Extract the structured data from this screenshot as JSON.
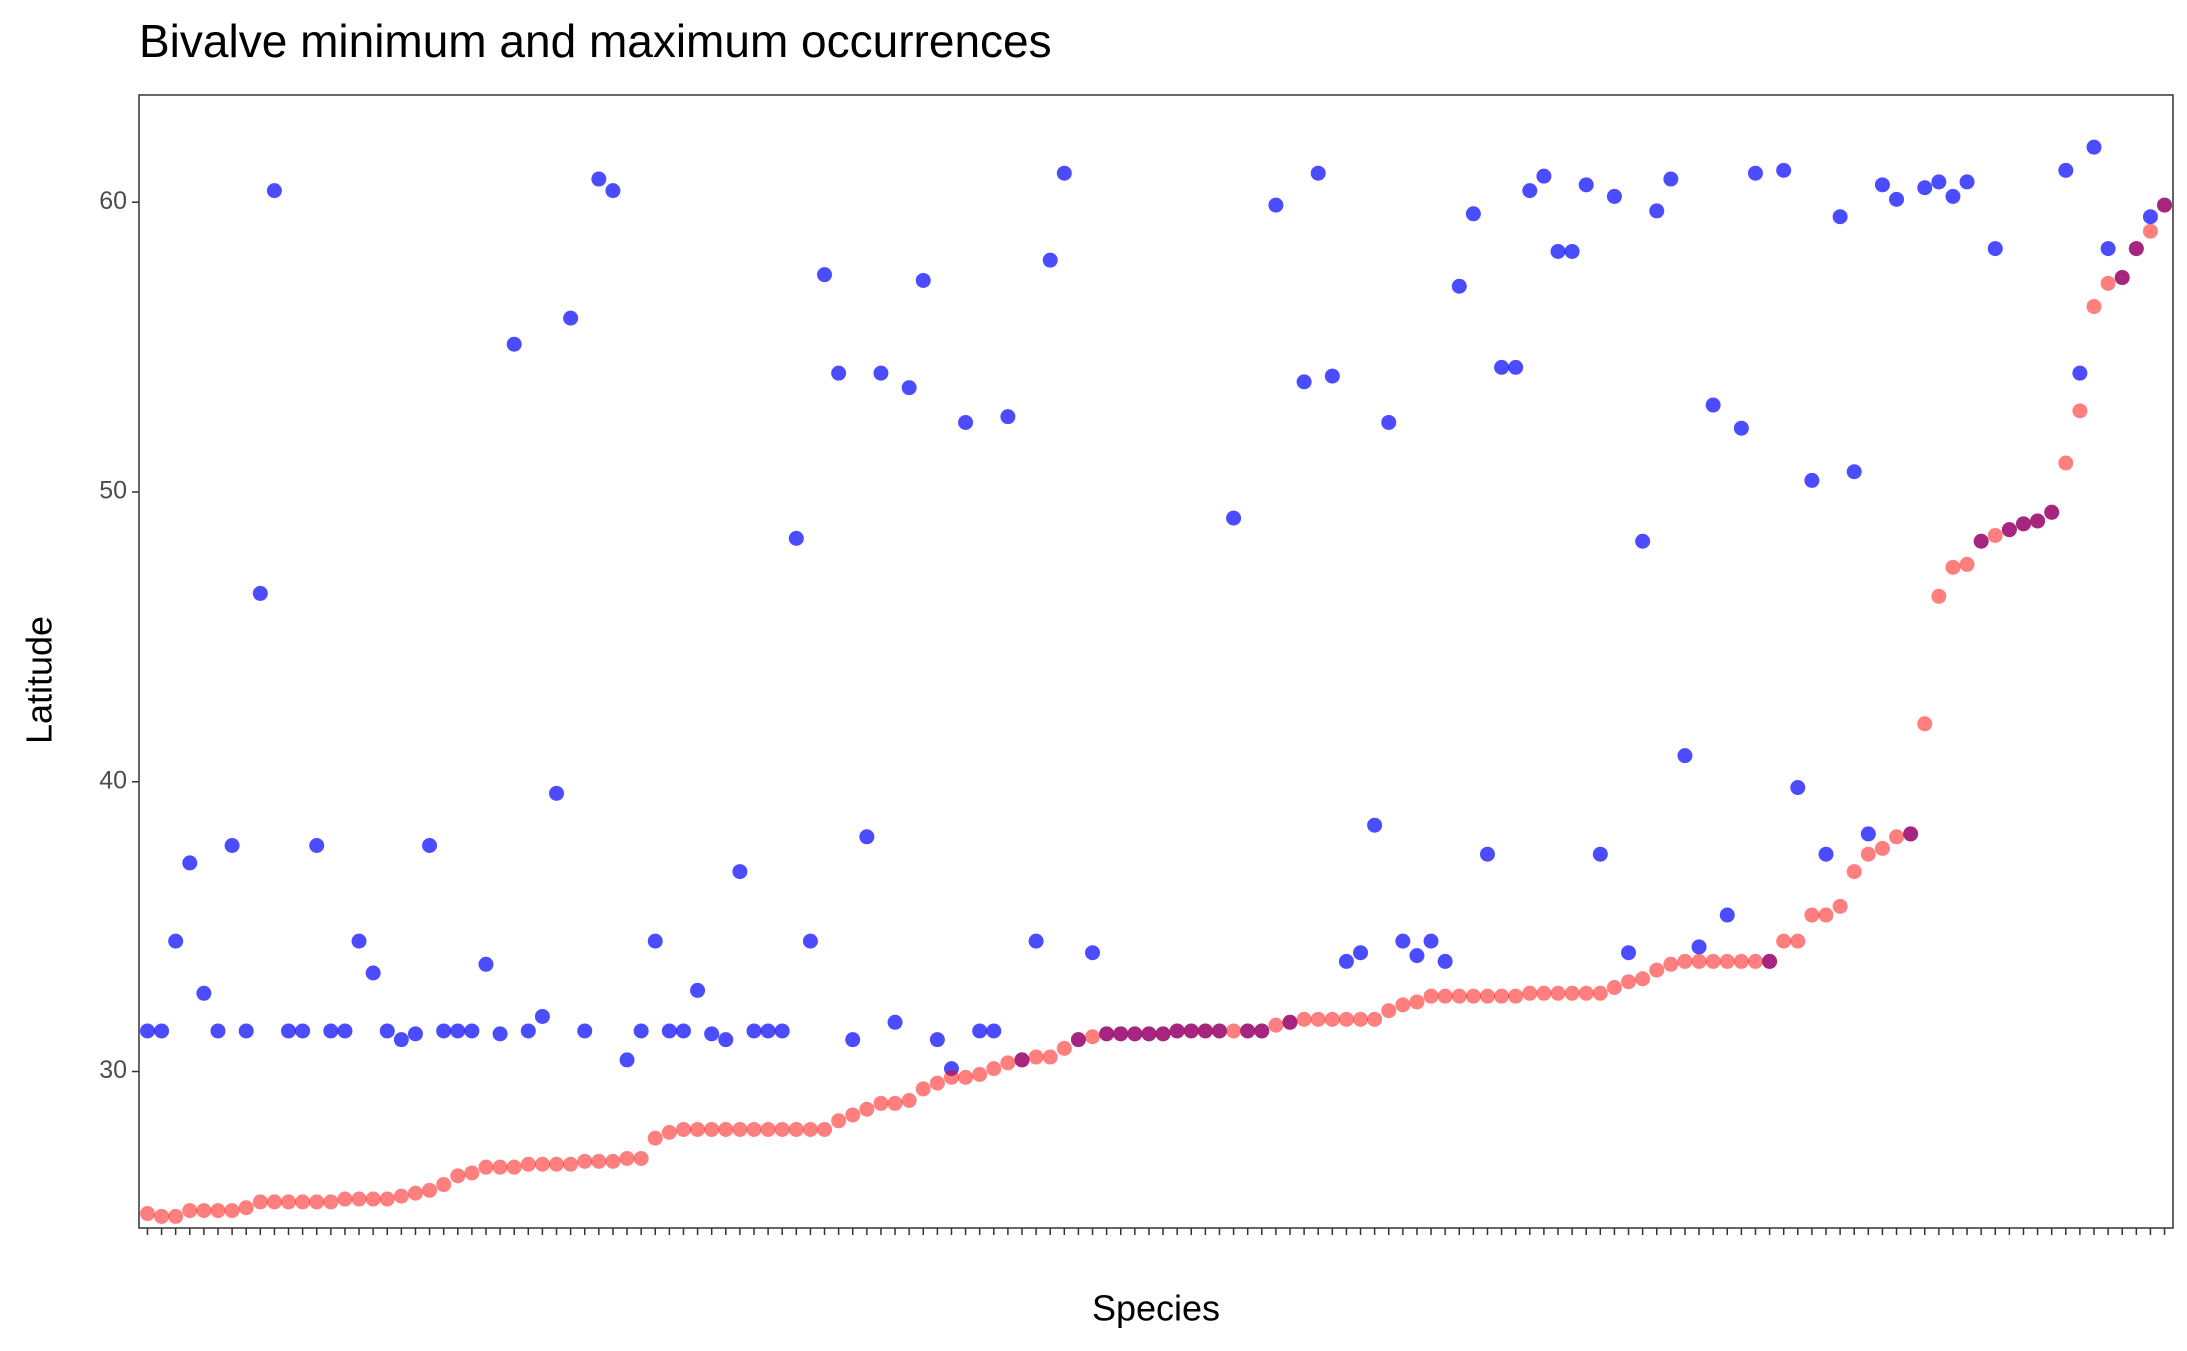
{
  "chart_data": {
    "type": "scatter",
    "title": "Bivalve minimum and maximum occurrences",
    "x_label": "Species",
    "y_label": "Latitude",
    "categories": [
      null,
      null,
      null,
      null,
      null,
      null,
      null,
      null,
      null,
      null,
      null,
      null,
      null,
      null,
      null,
      null,
      null,
      null,
      null,
      null,
      null,
      null,
      null,
      null,
      null,
      null,
      null,
      null,
      null,
      null,
      null,
      null,
      null,
      null,
      null,
      null,
      null,
      null,
      null,
      null,
      null,
      null,
      null,
      null,
      null,
      null,
      null,
      null,
      null,
      null,
      null,
      null,
      null,
      null,
      null,
      null,
      null,
      null,
      null,
      null,
      null,
      null,
      null,
      null,
      null,
      null,
      null,
      null,
      null,
      null,
      null,
      null,
      null,
      null,
      null,
      null,
      null,
      null,
      null,
      null,
      null,
      null,
      null,
      null,
      null,
      null,
      null,
      null,
      null,
      null,
      null,
      null,
      null,
      null,
      null,
      null,
      null,
      null,
      null,
      null,
      null,
      null,
      null,
      null,
      null,
      null,
      null,
      null,
      null,
      null,
      null,
      null,
      null,
      null,
      null,
      null,
      null,
      null,
      null,
      null,
      null,
      null,
      null,
      null,
      null,
      null,
      null,
      null,
      null,
      null,
      null,
      null,
      null,
      null,
      null,
      null,
      null,
      null,
      null,
      null,
      null,
      null,
      null,
      null
    ],
    "series": [
      {
        "color": "rgba(0,0,255,0.7)",
        "values": [
          31.4,
          31.4,
          34.5,
          37.2,
          32.7,
          31.4,
          37.8,
          31.4,
          46.5,
          60.4,
          31.4,
          31.4,
          37.8,
          31.4,
          31.4,
          34.5,
          33.4,
          31.4,
          31.1,
          31.3,
          37.8,
          31.4,
          31.4,
          31.4,
          33.7,
          31.3,
          55.1,
          31.4,
          31.9,
          39.6,
          56.0,
          31.4,
          60.8,
          60.4,
          30.4,
          31.4,
          34.5,
          31.4,
          31.4,
          32.8,
          31.3,
          31.1,
          36.9,
          31.4,
          31.4,
          31.4,
          48.4,
          34.5,
          57.5,
          54.1,
          31.1,
          38.1,
          54.1,
          31.7,
          53.6,
          57.3,
          31.1,
          30.1,
          52.4,
          31.4,
          31.4,
          52.6,
          30.4,
          34.5,
          58.0,
          61.0,
          31.1,
          34.1,
          31.3,
          31.3,
          31.3,
          31.3,
          31.3,
          31.4,
          31.4,
          31.4,
          31.4,
          49.1,
          31.4,
          31.4,
          59.9,
          31.7,
          53.8,
          61.0,
          54.0,
          33.8,
          34.1,
          38.5,
          52.4,
          34.5,
          34.0,
          34.5,
          33.8,
          57.1,
          59.6,
          37.5,
          54.3,
          54.3,
          60.4,
          60.9,
          58.3,
          58.3,
          60.6,
          37.5,
          60.2,
          34.1,
          48.3,
          59.7,
          60.8,
          40.9,
          34.3,
          53.0,
          35.4,
          52.2,
          61.0,
          33.8,
          61.1,
          39.8,
          50.4,
          37.5,
          59.5,
          50.7,
          38.2,
          60.6,
          60.1,
          38.2,
          60.5,
          60.7,
          60.2,
          60.7,
          48.3,
          58.4,
          48.7,
          48.9,
          49.0,
          49.3,
          61.1,
          54.1,
          61.9,
          58.4,
          57.4,
          58.4,
          59.5,
          59.9
        ]
      },
      {
        "color": "rgba(255,0,0,0.5)",
        "values": [
          25.1,
          25.0,
          25.0,
          25.2,
          25.2,
          25.2,
          25.2,
          25.3,
          25.5,
          25.5,
          25.5,
          25.5,
          25.5,
          25.5,
          25.6,
          25.6,
          25.6,
          25.6,
          25.7,
          25.8,
          25.9,
          26.1,
          26.4,
          26.5,
          26.7,
          26.7,
          26.7,
          26.8,
          26.8,
          26.8,
          26.8,
          26.9,
          26.9,
          26.9,
          27.0,
          27.0,
          27.7,
          27.9,
          28.0,
          28.0,
          28.0,
          28.0,
          28.0,
          28.0,
          28.0,
          28.0,
          28.0,
          28.0,
          28.0,
          28.3,
          28.5,
          28.7,
          28.9,
          28.9,
          29.0,
          29.4,
          29.6,
          29.8,
          29.8,
          29.9,
          30.1,
          30.3,
          30.4,
          30.5,
          30.5,
          30.8,
          31.1,
          31.2,
          31.3,
          31.3,
          31.3,
          31.3,
          31.3,
          31.4,
          31.4,
          31.4,
          31.4,
          31.4,
          31.4,
          31.4,
          31.6,
          31.7,
          31.8,
          31.8,
          31.8,
          31.8,
          31.8,
          31.8,
          32.1,
          32.3,
          32.4,
          32.6,
          32.6,
          32.6,
          32.6,
          32.6,
          32.6,
          32.6,
          32.7,
          32.7,
          32.7,
          32.7,
          32.7,
          32.7,
          32.9,
          33.1,
          33.2,
          33.5,
          33.7,
          33.8,
          33.8,
          33.8,
          33.8,
          33.8,
          33.8,
          33.8,
          34.5,
          34.5,
          35.4,
          35.4,
          35.7,
          36.9,
          37.5,
          37.7,
          38.1,
          38.2,
          42.0,
          46.4,
          47.4,
          47.5,
          48.3,
          48.5,
          48.7,
          48.9,
          49.0,
          49.3,
          51.0,
          52.8,
          56.4,
          57.2,
          57.4,
          58.4,
          59.0,
          59.9
        ]
      }
    ],
    "ylim": [
      24.6,
      63.7
    ],
    "yticks": [
      30,
      40,
      50,
      60
    ]
  }
}
